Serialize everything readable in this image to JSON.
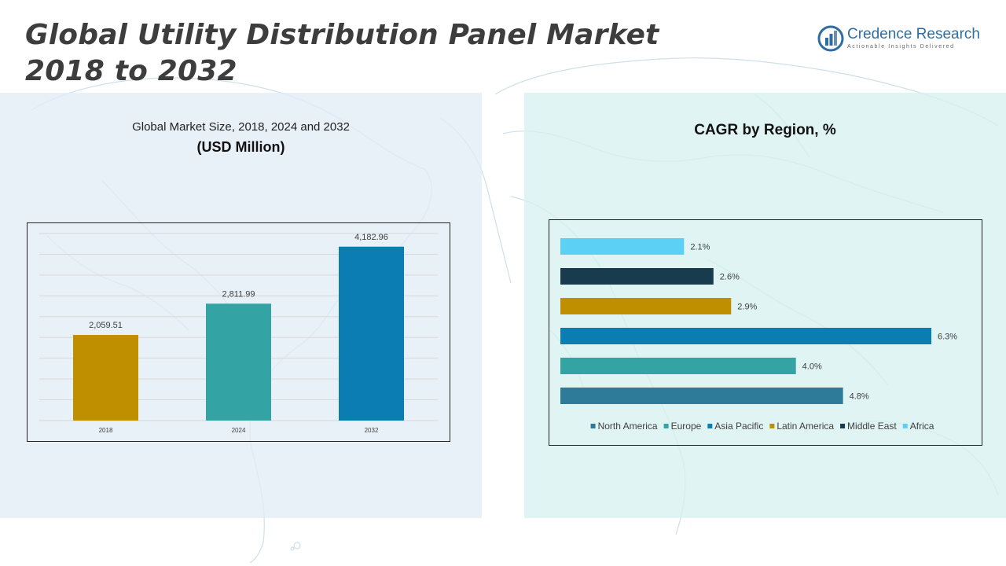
{
  "header": {
    "title_line1": "Global Utility Distribution Panel Market",
    "title_line2": "2018 to 2032"
  },
  "logo": {
    "name": "Credence Research",
    "tagline": "Actionable Insights Delivered",
    "accent": "#2e6da4"
  },
  "left_panel": {
    "title": "Global Market Size, 2018, 2024 and 2032",
    "subtitle": "(USD Million)"
  },
  "right_panel": {
    "title": "CAGR by Region, %"
  },
  "chart_data": [
    {
      "type": "bar",
      "title": "Global Market Size, 2018, 2024 and 2032",
      "subtitle": "(USD Million)",
      "categories": [
        "2018",
        "2024",
        "2032"
      ],
      "values": [
        2059.51,
        2811.99,
        4182.96
      ],
      "value_labels": [
        "2,059.51",
        "2,811.99",
        "4,182.96"
      ],
      "colors": [
        "#bf8f00",
        "#33a3a3",
        "#0b7db3"
      ],
      "ylim": [
        0,
        4500
      ],
      "grid": true
    },
    {
      "type": "bar",
      "orientation": "horizontal",
      "title": "CAGR by Region, %",
      "categories": [
        "North America",
        "Europe",
        "Asia Pacific",
        "Latin America",
        "Middle East",
        "Africa"
      ],
      "values": [
        4.8,
        4.0,
        6.3,
        2.9,
        2.6,
        2.1
      ],
      "value_labels": [
        "4.8%",
        "4.0%",
        "6.3%",
        "2.9%",
        "2.6%",
        "2.1%"
      ],
      "colors": [
        "#2e7a99",
        "#33a3a3",
        "#0b7db3",
        "#bf8f00",
        "#183c4e",
        "#5dd0f5"
      ],
      "xlim": [
        0,
        6.3
      ],
      "legend": "bottom",
      "grid": false
    }
  ]
}
